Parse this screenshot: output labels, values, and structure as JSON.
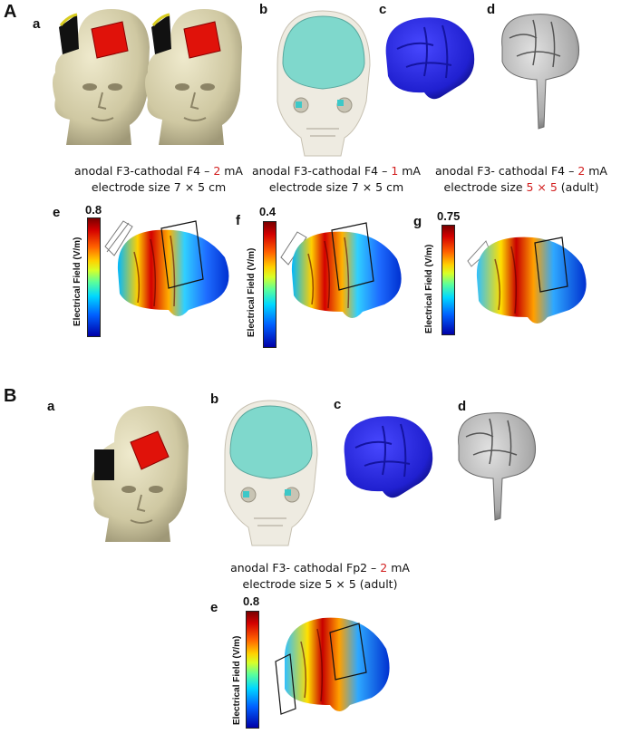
{
  "section_A": {
    "label": "A",
    "panels": {
      "a": "a",
      "b": "b",
      "c": "c",
      "d": "d",
      "e": "e",
      "f": "f",
      "g": "g"
    },
    "captions": [
      {
        "line1_pre": "anodal F3-cathodal F4 – ",
        "line1_red": "2",
        "line1_post": " mA",
        "line2": "electrode size 7 × 5 cm"
      },
      {
        "line1_pre": "anodal F3-cathodal F4 – ",
        "line1_red": "1",
        "line1_post": " mA",
        "line2": "electrode size 7 × 5 cm"
      },
      {
        "line1_pre": "anodal F3- cathodal F4 – ",
        "line1_red": "2",
        "line1_post": " mA",
        "line2_pre": "electrode size ",
        "line2_red": "5 × 5",
        "line2_post": " (adult)"
      }
    ],
    "colorbars": [
      {
        "max": "0.8",
        "label": "Electrical Field (V/m)"
      },
      {
        "max": "0.4",
        "label": "Electrical Field (V/m)"
      },
      {
        "max": "0.75",
        "label": "Electrical Field (V/m)"
      }
    ]
  },
  "section_B": {
    "label": "B",
    "panels": {
      "a": "a",
      "b": "b",
      "c": "c",
      "d": "d",
      "e": "e"
    },
    "caption": {
      "line1_pre": "anodal F3- cathodal Fp2 – ",
      "line1_red": "2",
      "line1_post": " mA",
      "line2": "electrode size 5 × 5 (adult)"
    },
    "colorbar": {
      "max": "0.8",
      "label": "Electrical Field (V/m)"
    }
  },
  "colors": {
    "skin": "#d6d0ad",
    "electrode_red": "#e0120a",
    "brain_blue": "#2222d8",
    "skull_cyan": "#7fd8cc",
    "gray_matter": "#a9a9a9",
    "highlight_red": "#d21f1f"
  }
}
